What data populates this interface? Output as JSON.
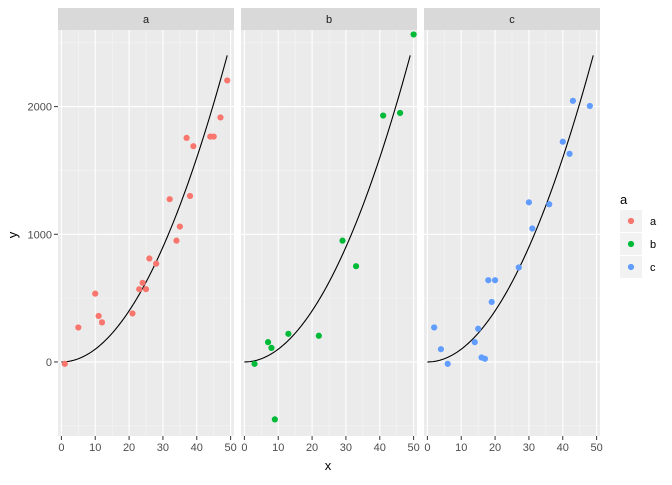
{
  "chart_data": {
    "type": "scatter",
    "xlabel": "x",
    "ylabel": "y",
    "xlim": [
      -1,
      51
    ],
    "ylim": [
      -580,
      2600
    ],
    "x_ticks": [
      0,
      10,
      20,
      30,
      40,
      50
    ],
    "y_ticks": [
      0,
      1000,
      2000
    ],
    "grid": true,
    "legend": {
      "title": "a",
      "position": "right"
    },
    "curve": {
      "formula": "y = x^2",
      "x_range": [
        0,
        49
      ]
    },
    "colors": {
      "a": "#F8766D",
      "b": "#00BA38",
      "c": "#619CFF"
    },
    "panels": [
      {
        "label": "a",
        "series": "a",
        "points": [
          [
            1,
            -15
          ],
          [
            5,
            270
          ],
          [
            10,
            535
          ],
          [
            11,
            360
          ],
          [
            12,
            310
          ],
          [
            21,
            380
          ],
          [
            23,
            570
          ],
          [
            24,
            620
          ],
          [
            25,
            570
          ],
          [
            26,
            810
          ],
          [
            28,
            770
          ],
          [
            32,
            1275
          ],
          [
            34,
            950
          ],
          [
            35,
            1060
          ],
          [
            37,
            1755
          ],
          [
            38,
            1300
          ],
          [
            39,
            1690
          ],
          [
            44,
            1765
          ],
          [
            45,
            1765
          ],
          [
            47,
            1915
          ],
          [
            49,
            2205
          ]
        ]
      },
      {
        "label": "b",
        "series": "b",
        "points": [
          [
            3,
            -15
          ],
          [
            7,
            155
          ],
          [
            8,
            110
          ],
          [
            9,
            -450
          ],
          [
            13,
            220
          ],
          [
            22,
            205
          ],
          [
            29,
            950
          ],
          [
            33,
            750
          ],
          [
            41,
            1930
          ],
          [
            46,
            1950
          ],
          [
            50,
            2565
          ]
        ]
      },
      {
        "label": "c",
        "series": "c",
        "points": [
          [
            2,
            270
          ],
          [
            4,
            100
          ],
          [
            6,
            -15
          ],
          [
            14,
            155
          ],
          [
            15,
            260
          ],
          [
            16,
            35
          ],
          [
            17,
            25
          ],
          [
            18,
            640
          ],
          [
            19,
            470
          ],
          [
            20,
            640
          ],
          [
            27,
            740
          ],
          [
            30,
            1250
          ],
          [
            31,
            1045
          ],
          [
            36,
            1235
          ],
          [
            40,
            1725
          ],
          [
            42,
            1630
          ],
          [
            43,
            2045
          ],
          [
            48,
            2005
          ]
        ]
      }
    ]
  }
}
